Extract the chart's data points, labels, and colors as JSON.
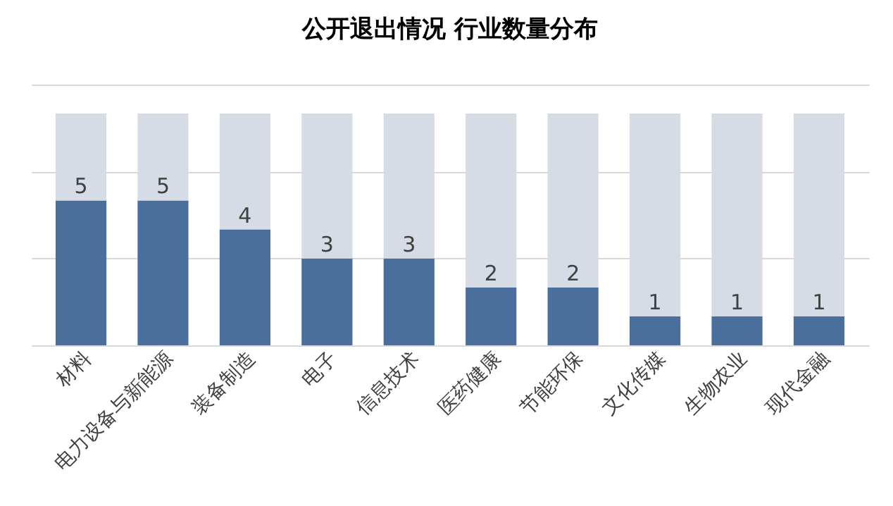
{
  "chart_data": {
    "type": "bar",
    "title": "公开退出情况 行业数量分布",
    "categories": [
      "材料",
      "电力设备与新能源",
      "装备制造",
      "电子",
      "信息技术",
      "医药健康",
      "节能环保",
      "文化传媒",
      "生物农业",
      "现代金融"
    ],
    "stacked": true,
    "series": [
      {
        "color": "#4a6f9c",
        "values": [
          5,
          5,
          4,
          3,
          3,
          2,
          2,
          1,
          1,
          1
        ],
        "value_labels": [
          "5",
          "5",
          "4",
          "3",
          "3",
          "2",
          "2",
          "1",
          "1",
          "1"
        ]
      },
      {
        "color": "#d6dce5",
        "values": [
          3,
          3,
          4,
          5,
          5,
          6,
          6,
          7,
          7,
          7
        ]
      }
    ],
    "ylim": [
      0,
      9
    ],
    "yticks": [
      {
        "value": 0,
        "label": null
      },
      {
        "value": 3,
        "label": null
      },
      {
        "value": 6,
        "label": null
      },
      {
        "value": 9,
        "label": null
      }
    ],
    "grid": "y",
    "tick_labels": "x"
  }
}
